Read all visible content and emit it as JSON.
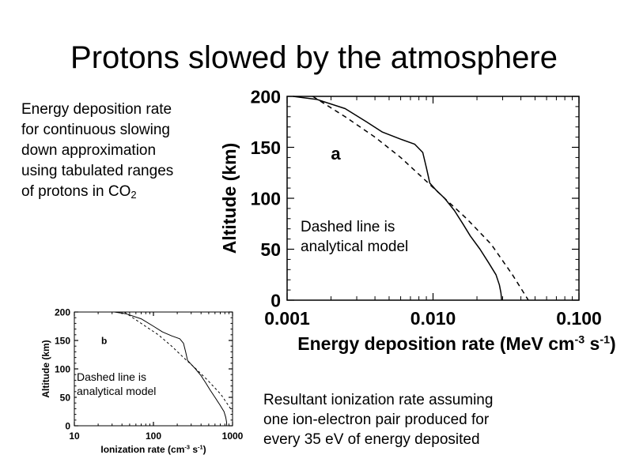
{
  "slide": {
    "title": "Protons slowed by the atmosphere",
    "description_lines": [
      "Energy deposition rate",
      "for continuous slowing",
      "down approximation",
      "using tabulated ranges",
      "of protons in CO"
    ],
    "description_subscript": "2",
    "main_note_lines": [
      "Dashed line is",
      "analytical model"
    ],
    "small_note_lines": [
      "Dashed line is",
      "analytical model"
    ],
    "result_lines": [
      "Resultant ionization rate assuming",
      "one ion-electron pair produced for",
      "every 35 eV of energy deposited"
    ]
  },
  "chart_data": [
    {
      "type": "line",
      "panel_label": "a",
      "xlabel": "Energy deposition rate (MeV cm",
      "xlabel_sup1": "-3",
      "xlabel_mid": " s",
      "xlabel_sup2": "-1",
      "xlabel_end": ")",
      "ylabel": "Altitude (km)",
      "xscale": "log",
      "xlim": [
        0.001,
        0.1
      ],
      "ylim": [
        0,
        200
      ],
      "xticks": [
        0.001,
        0.01,
        0.1
      ],
      "xtick_labels": [
        "0.001",
        "0.010",
        "0.100"
      ],
      "yticks": [
        0,
        50,
        100,
        150,
        200
      ],
      "ytick_labels": [
        "0",
        "50",
        "100",
        "150",
        "200"
      ],
      "series": [
        {
          "style": "solid",
          "x": [
            0.0011,
            0.0016,
            0.0025,
            0.0035,
            0.0045,
            0.006,
            0.0075,
            0.0085,
            0.009,
            0.0095,
            0.0105,
            0.012,
            0.014,
            0.016,
            0.018,
            0.021,
            0.024,
            0.027,
            0.0285,
            0.0292,
            0.0295
          ],
          "y": [
            200,
            197,
            188,
            175,
            165,
            158,
            153,
            145,
            130,
            115,
            108,
            100,
            88,
            75,
            63,
            50,
            37,
            25,
            15,
            7,
            0
          ]
        },
        {
          "style": "dashed",
          "x": [
            0.0015,
            0.0025,
            0.004,
            0.006,
            0.0085,
            0.012,
            0.017,
            0.025,
            0.035,
            0.045
          ],
          "y": [
            200,
            180,
            160,
            140,
            120,
            100,
            80,
            55,
            25,
            0
          ]
        }
      ]
    },
    {
      "type": "line",
      "panel_label": "b",
      "xlabel": "Ionization rate (cm",
      "xlabel_sup1": "-3",
      "xlabel_mid": " s",
      "xlabel_sup2": "-1",
      "xlabel_end": ")",
      "ylabel": "Altitude (km)",
      "xscale": "log",
      "xlim": [
        10,
        1000
      ],
      "ylim": [
        0,
        200
      ],
      "xticks": [
        10,
        100,
        1000
      ],
      "xtick_labels": [
        "10",
        "100",
        "1000"
      ],
      "yticks": [
        0,
        50,
        100,
        150,
        200
      ],
      "ytick_labels": [
        "0",
        "50",
        "100",
        "150",
        "200"
      ],
      "series": [
        {
          "style": "solid",
          "x": [
            32,
            45,
            70,
            100,
            130,
            170,
            215,
            240,
            255,
            270,
            300,
            340,
            400,
            460,
            520,
            600,
            690,
            780,
            820,
            840,
            845
          ],
          "y": [
            200,
            197,
            188,
            175,
            165,
            158,
            153,
            145,
            130,
            115,
            108,
            100,
            88,
            75,
            63,
            50,
            37,
            25,
            15,
            7,
            0
          ]
        },
        {
          "style": "dashed",
          "x": [
            43,
            70,
            115,
            170,
            240,
            345,
            485,
            715,
            1000
          ],
          "y": [
            200,
            180,
            160,
            140,
            120,
            100,
            80,
            55,
            25
          ]
        }
      ]
    }
  ]
}
